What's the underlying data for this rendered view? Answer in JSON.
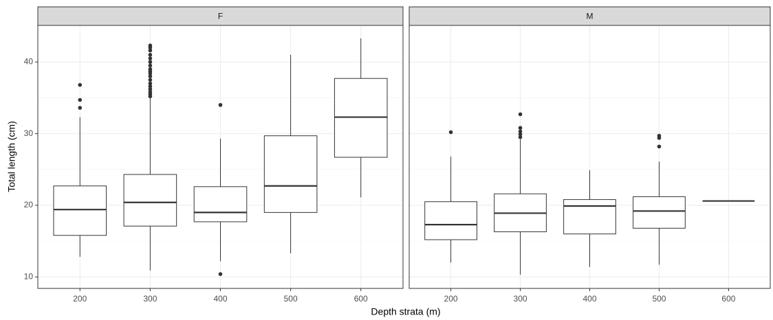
{
  "chart_data": [
    {
      "type": "box",
      "title": "F",
      "xlabel": "Depth strata (m)",
      "ylabel": "Total length (cm)",
      "categories": [
        "200",
        "300",
        "400",
        "500",
        "600"
      ],
      "boxes": [
        {
          "low": 12.8,
          "q1": 15.8,
          "median": 19.4,
          "q3": 22.7,
          "high": 32.3,
          "outliers": [
            33.6,
            34.7,
            36.8
          ]
        },
        {
          "low": 10.9,
          "q1": 17.1,
          "median": 20.4,
          "q3": 24.3,
          "high": 35.0,
          "outliers": [
            35.2,
            35.5,
            35.8,
            36.2,
            36.6,
            37.0,
            37.5,
            38.0,
            38.4,
            38.7,
            39.0,
            39.5,
            40.0,
            40.5,
            41.0,
            41.6,
            42.0,
            42.3
          ]
        },
        {
          "low": 12.2,
          "q1": 17.7,
          "median": 19.0,
          "q3": 22.6,
          "high": 29.3,
          "outliers": [
            10.4,
            34.0
          ]
        },
        {
          "low": 13.3,
          "q1": 19.0,
          "median": 22.7,
          "q3": 29.7,
          "high": 41.0,
          "outliers": []
        },
        {
          "low": 21.1,
          "q1": 26.7,
          "median": 32.3,
          "q3": 37.7,
          "high": 43.3,
          "outliers": []
        }
      ],
      "ylim": [
        8.4,
        45.1
      ],
      "yticks": [
        10,
        20,
        30,
        40
      ],
      "minor_yticks": [
        15,
        25,
        35
      ],
      "grid": true,
      "color": "#333333"
    },
    {
      "type": "box",
      "title": "M",
      "categories": [
        "200",
        "300",
        "400",
        "500",
        "600"
      ],
      "boxes": [
        {
          "low": 12.0,
          "q1": 15.2,
          "median": 17.3,
          "q3": 20.5,
          "high": 26.8,
          "outliers": [
            30.2
          ]
        },
        {
          "low": 10.3,
          "q1": 16.3,
          "median": 18.9,
          "q3": 21.6,
          "high": 29.2,
          "outliers": [
            29.5,
            29.9,
            30.3,
            30.8,
            32.7
          ]
        },
        {
          "low": 11.4,
          "q1": 16.0,
          "median": 19.9,
          "q3": 20.8,
          "high": 24.9,
          "outliers": []
        },
        {
          "low": 11.7,
          "q1": 16.8,
          "median": 19.2,
          "q3": 21.2,
          "high": 26.1,
          "outliers": [
            28.2,
            29.4,
            29.7
          ]
        },
        {
          "low": 20.6,
          "q1": 20.6,
          "median": 20.6,
          "q3": 20.6,
          "high": 20.6,
          "outliers": []
        }
      ],
      "ylim": [
        8.4,
        45.1
      ],
      "yticks": [
        10,
        20,
        30,
        40
      ],
      "minor_yticks": [
        15,
        25,
        35
      ],
      "grid": true,
      "color": "#333333"
    }
  ]
}
